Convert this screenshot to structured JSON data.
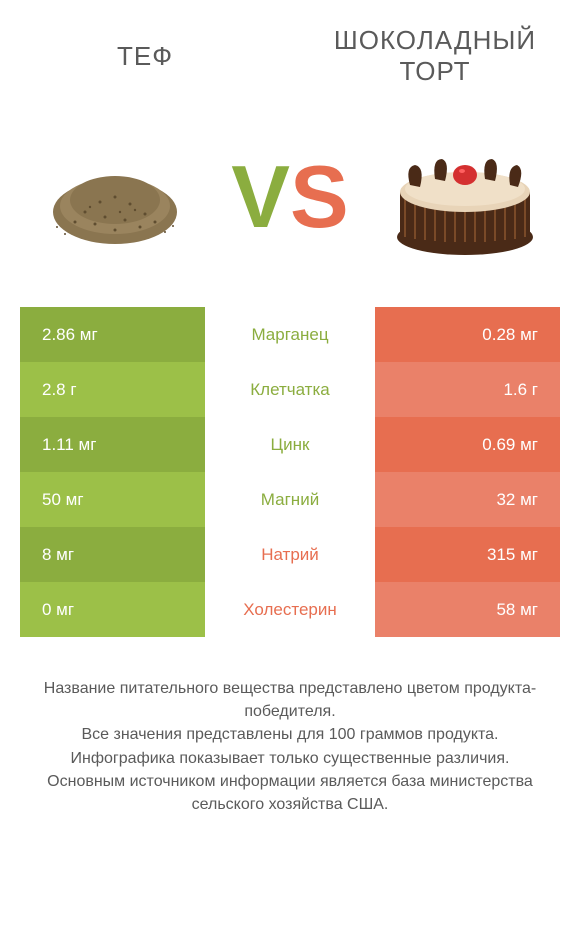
{
  "colors": {
    "left_primary": "#8bad3f",
    "left_alt": "#9cc048",
    "right_primary": "#e76e50",
    "right_alt": "#ea8169",
    "mid_bg": "#ffffff",
    "text_body": "#5a5a5a",
    "teff_grain": "#8a7550",
    "teff_grain_dark": "#5f4d30",
    "cake_choco": "#4a2a17",
    "cake_choco_light": "#7a4a28",
    "cake_cream": "#e8d4b8",
    "strawberry": "#d43030"
  },
  "header": {
    "left_title": "ТЕФ",
    "right_title": "ШОКОЛАДНЫЙ ТОРТ"
  },
  "vs": {
    "v": "V",
    "s": "S"
  },
  "rows": [
    {
      "nutrient": "Марганец",
      "left": "2.86 мг",
      "right": "0.28 мг",
      "winner": "left"
    },
    {
      "nutrient": "Клетчатка",
      "left": "2.8 г",
      "right": "1.6 г",
      "winner": "left"
    },
    {
      "nutrient": "Цинк",
      "left": "1.11 мг",
      "right": "0.69 мг",
      "winner": "left"
    },
    {
      "nutrient": "Магний",
      "left": "50 мг",
      "right": "32 мг",
      "winner": "left"
    },
    {
      "nutrient": "Натрий",
      "left": "8 мг",
      "right": "315 мг",
      "winner": "right"
    },
    {
      "nutrient": "Холестерин",
      "left": "0 мг",
      "right": "58 мг",
      "winner": "right"
    }
  ],
  "footer": {
    "line1": "Название питательного вещества представлено цветом продукта-победителя.",
    "line2": "Все значения представлены для 100 граммов продукта.",
    "line3": "Инфографика показывает только существенные различия.",
    "line4": "Основным источником информации является база министерства сельского хозяйства США."
  }
}
